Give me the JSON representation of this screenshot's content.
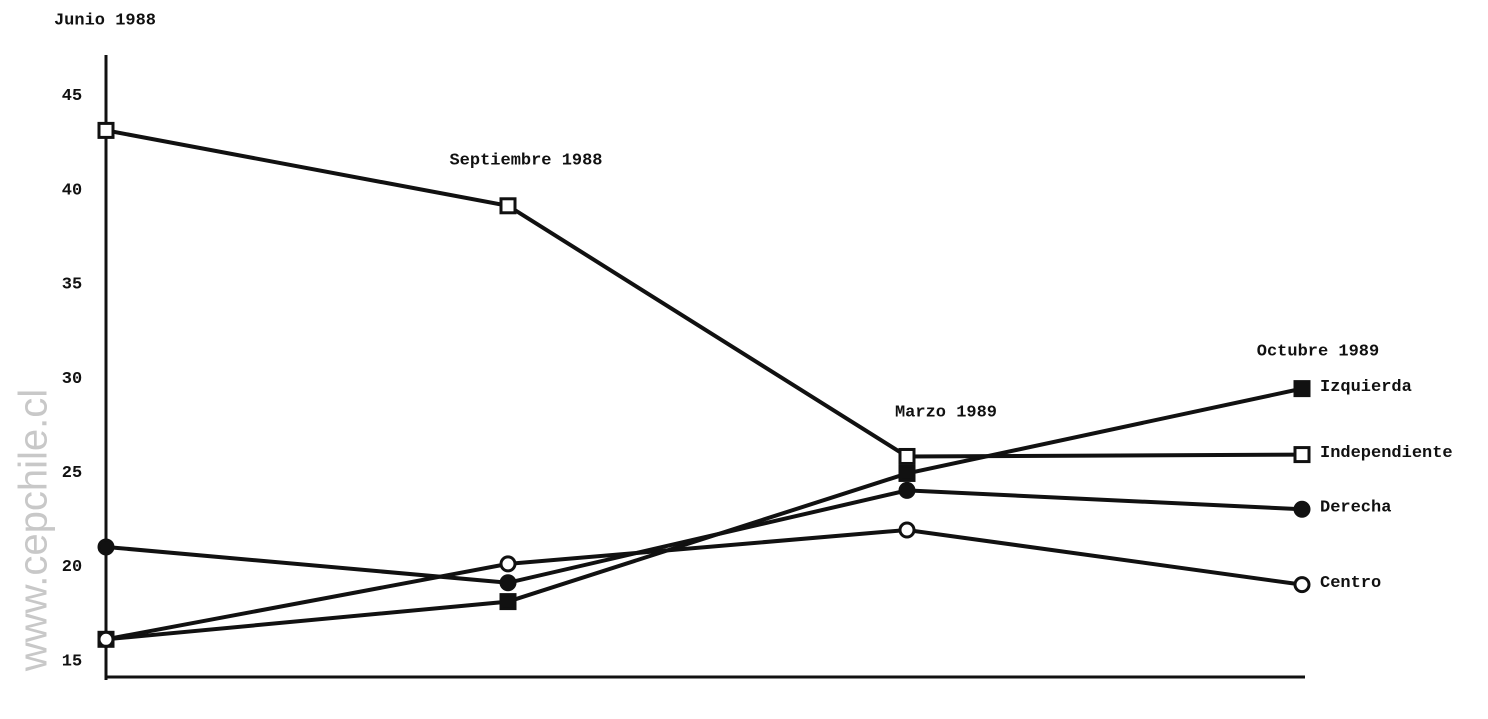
{
  "chart_data": {
    "type": "line",
    "watermark": "www.cepchile.cl",
    "categories": [
      "Junio 1988",
      "Septiembre 1988",
      "Marzo 1989",
      "Octubre 1989"
    ],
    "series": [
      {
        "name": "Izquierda",
        "color": "#111111",
        "marker": "square-filled",
        "values": [
          17,
          19,
          25.8,
          30.3
        ]
      },
      {
        "name": "Independiente",
        "color": "#111111",
        "marker": "square-open",
        "values": [
          44,
          40,
          26.7,
          26.8
        ]
      },
      {
        "name": "Derecha",
        "color": "#111111",
        "marker": "circle-filled",
        "values": [
          21.9,
          20,
          24.9,
          23.9
        ]
      },
      {
        "name": "Centro",
        "color": "#111111",
        "marker": "circle-open",
        "values": [
          17,
          21,
          22.8,
          19.9
        ]
      }
    ],
    "ylim": [
      15,
      48
    ],
    "yticks": [
      15,
      20,
      25,
      30,
      35,
      40,
      45
    ]
  }
}
